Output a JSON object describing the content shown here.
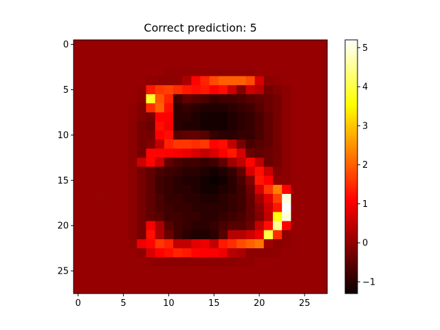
{
  "chart_data": {
    "type": "heatmap",
    "title": "Correct prediction: 5",
    "xlabel": "",
    "ylabel": "",
    "colormap": "hot",
    "xlim": [
      -0.5,
      27.5
    ],
    "ylim": [
      27.5,
      -0.5
    ],
    "x_ticks": [
      0,
      5,
      10,
      15,
      20,
      25
    ],
    "y_ticks": [
      0,
      5,
      10,
      15,
      20,
      25
    ],
    "colorbar": {
      "vmin": -1.3,
      "vmax": 5.2,
      "ticks": [
        -1,
        0,
        1,
        2,
        3,
        4,
        5
      ]
    },
    "grid": false,
    "shape": [
      28,
      28
    ],
    "matrix": [
      [
        0,
        0,
        0,
        0,
        0,
        0,
        0,
        0,
        0,
        0,
        0,
        0,
        0,
        0,
        0,
        0,
        0,
        0,
        0,
        0,
        0,
        0,
        0,
        0,
        0,
        0,
        0,
        0
      ],
      [
        0,
        0,
        0,
        0,
        0,
        0,
        0,
        0,
        0,
        0,
        0,
        0,
        0,
        0,
        0,
        0,
        0,
        0,
        0,
        0,
        0,
        0,
        0,
        0,
        0,
        0,
        0,
        0
      ],
      [
        0,
        0,
        0,
        0,
        0,
        0,
        0,
        0,
        0,
        0,
        0,
        0,
        0,
        0,
        0,
        0,
        0,
        0,
        0,
        0,
        0,
        0,
        0,
        0,
        0,
        0,
        0,
        0
      ],
      [
        0,
        0,
        0,
        0,
        0,
        0,
        0,
        0,
        0,
        0,
        -0.05,
        -0.05,
        -0.05,
        -0.05,
        -0.05,
        -0.05,
        -0.05,
        -0.05,
        -0.05,
        -0.05,
        0,
        0,
        0,
        0,
        0,
        0,
        0,
        0
      ],
      [
        0,
        0,
        0,
        0,
        0,
        0,
        0,
        0,
        -0.05,
        -0.1,
        -0.1,
        -0.05,
        0.2,
        1.1,
        1.4,
        1.8,
        2.0,
        2.0,
        2.0,
        1.8,
        0.6,
        -0.1,
        -0.05,
        0,
        0,
        0,
        0,
        0
      ],
      [
        0,
        0,
        0,
        0,
        0,
        0,
        0,
        -0.05,
        1.3,
        1.6,
        1.7,
        1.5,
        1.3,
        1.2,
        1.3,
        1.0,
        1.2,
        0.5,
        -0.2,
        0.5,
        0.3,
        -0.3,
        -0.2,
        -0.1,
        0,
        0,
        0,
        0
      ],
      [
        0,
        0,
        0,
        0,
        0,
        0,
        0,
        -0.1,
        3.8,
        1.9,
        1.4,
        -0.8,
        -0.5,
        -0.6,
        -0.7,
        -0.9,
        -0.8,
        -0.8,
        -0.7,
        -0.6,
        -0.5,
        -0.4,
        -0.3,
        -0.1,
        0,
        0,
        0,
        0
      ],
      [
        0,
        0,
        0,
        0,
        0,
        0,
        -0.05,
        -0.2,
        1.5,
        2.0,
        1.2,
        -1.0,
        -0.9,
        -1.0,
        -1.1,
        -1.1,
        -1.1,
        -1.0,
        -0.9,
        -0.8,
        -0.6,
        -0.4,
        -0.3,
        -0.1,
        0,
        0,
        0,
        0
      ],
      [
        0,
        0,
        0,
        0,
        0,
        0,
        -0.05,
        -0.2,
        -0.3,
        1.0,
        1.0,
        -1.0,
        -1.0,
        -1.1,
        -1.2,
        -1.2,
        -1.2,
        -1.1,
        -1.0,
        -0.9,
        -0.7,
        -0.5,
        -0.3,
        -0.1,
        0,
        0,
        0,
        0
      ],
      [
        0,
        0,
        0,
        0,
        0,
        0,
        -0.1,
        -0.3,
        -0.4,
        1.2,
        0.9,
        -1.0,
        -1.1,
        -1.1,
        -1.2,
        -1.2,
        -1.2,
        -1.1,
        -1.0,
        -0.9,
        -0.7,
        -0.5,
        -0.3,
        -0.1,
        0,
        0,
        0,
        0
      ],
      [
        0,
        0,
        0,
        0,
        0,
        0,
        -0.1,
        -0.3,
        -0.3,
        1.0,
        1.2,
        -0.6,
        -0.5,
        -0.5,
        -0.6,
        -0.9,
        -1.0,
        -1.0,
        -0.9,
        -0.9,
        -0.7,
        -0.5,
        -0.3,
        -0.1,
        0,
        0,
        0,
        0
      ],
      [
        0,
        0,
        0,
        0,
        0,
        0,
        -0.1,
        -0.3,
        -0.2,
        0.4,
        1.4,
        1.6,
        1.6,
        1.5,
        1.6,
        1.1,
        1.2,
        0.4,
        -0.3,
        -0.7,
        -0.6,
        -0.5,
        -0.3,
        -0.1,
        0,
        0,
        0,
        0
      ],
      [
        0,
        0,
        0,
        0,
        0,
        0,
        -0.1,
        -0.3,
        1.1,
        1.1,
        1.0,
        0.9,
        0.8,
        0.6,
        0.4,
        0.6,
        1.0,
        1.3,
        0.6,
        -0.4,
        -0.5,
        -0.4,
        -0.3,
        -0.1,
        0,
        0,
        0,
        0
      ],
      [
        0,
        0,
        0,
        0,
        0,
        0,
        -0.1,
        0.5,
        1.1,
        0.5,
        -0.5,
        -0.7,
        -0.8,
        -0.8,
        -0.9,
        -0.8,
        -0.5,
        0.1,
        0.4,
        1.1,
        0.4,
        -0.4,
        -0.3,
        -0.1,
        0,
        0,
        0,
        0
      ],
      [
        0,
        0,
        0,
        0,
        0,
        0,
        -0.1,
        -0.3,
        -0.5,
        -0.7,
        -0.8,
        -0.9,
        -1.0,
        -1.0,
        -1.1,
        -1.2,
        -1.1,
        -0.9,
        -0.5,
        0.6,
        1.2,
        0.5,
        -0.2,
        -0.1,
        0,
        0,
        0,
        0
      ],
      [
        0,
        0,
        0,
        0,
        0,
        0,
        -0.1,
        -0.3,
        -0.5,
        -0.8,
        -0.9,
        -1.0,
        -1.1,
        -1.1,
        -1.2,
        -1.3,
        -1.2,
        -1.0,
        -0.7,
        -0.2,
        1.3,
        1.0,
        -0.1,
        -0.1,
        0,
        0,
        0,
        0
      ],
      [
        0,
        0,
        0,
        0,
        0,
        0,
        -0.1,
        -0.3,
        -0.5,
        -0.8,
        -0.9,
        -1.0,
        -1.0,
        -1.1,
        -1.2,
        -1.2,
        -1.1,
        -1.0,
        -0.8,
        -0.4,
        0.6,
        1.6,
        2.3,
        1.0,
        0,
        0,
        0,
        0
      ],
      [
        0,
        0,
        0,
        0,
        0,
        0,
        -0.1,
        -0.3,
        -0.5,
        -0.7,
        -0.9,
        -0.9,
        -1.0,
        -1.0,
        -1.1,
        -1.1,
        -1.0,
        -0.9,
        -0.8,
        -0.5,
        0.1,
        0.7,
        1.7,
        5.0,
        0,
        0,
        0,
        0
      ],
      [
        0,
        0,
        0,
        0,
        0,
        0,
        -0.1,
        -0.3,
        -0.5,
        -0.7,
        -0.8,
        -0.9,
        -0.9,
        -1.0,
        -1.0,
        -1.0,
        -1.0,
        -0.9,
        -0.8,
        -0.5,
        -0.1,
        0.5,
        1.3,
        5.2,
        0,
        0,
        0,
        0
      ],
      [
        0,
        0,
        0,
        0,
        0,
        0,
        -0.1,
        -0.3,
        -0.5,
        -0.6,
        -0.8,
        -0.8,
        -0.9,
        -0.9,
        -1.0,
        -1.0,
        -0.9,
        -0.8,
        -0.7,
        -0.5,
        -0.2,
        0.4,
        3.6,
        5.0,
        0,
        0,
        0,
        0
      ],
      [
        0,
        0,
        0,
        0,
        0,
        0,
        -0.1,
        -0.3,
        0.9,
        0.2,
        -0.6,
        -0.8,
        -0.9,
        -1.0,
        -1.0,
        -0.9,
        -0.7,
        -0.6,
        -0.6,
        -0.4,
        0.4,
        1.2,
        4.5,
        1.0,
        0,
        0,
        0,
        0
      ],
      [
        0,
        0,
        0,
        0,
        0,
        0,
        -0.1,
        -0.3,
        1.2,
        0.2,
        -0.4,
        -0.8,
        -1.0,
        -1.1,
        -1.1,
        -1.0,
        -0.6,
        0.3,
        0.3,
        0.5,
        0.8,
        4.0,
        1.5,
        -0.1,
        0,
        0,
        0,
        0
      ],
      [
        0,
        0,
        0,
        0,
        0,
        0,
        -0.05,
        0.8,
        1.1,
        1.6,
        1.4,
        0.4,
        0.4,
        0.7,
        0.8,
        0.4,
        1.3,
        1.5,
        1.8,
        2.0,
        2.2,
        0.1,
        -0.1,
        -0.05,
        0,
        0,
        0,
        0
      ],
      [
        0,
        0,
        0,
        0,
        0,
        0,
        0,
        -0.1,
        0.6,
        1.0,
        1.2,
        1.4,
        1.3,
        1.1,
        1.0,
        1.0,
        0.8,
        0.3,
        0.2,
        -0.1,
        -0.1,
        -0.1,
        -0.05,
        0,
        0,
        0,
        0,
        0
      ],
      [
        0,
        0,
        0,
        0,
        0,
        0,
        0,
        0,
        -0.05,
        -0.1,
        -0.1,
        -0.1,
        -0.1,
        -0.1,
        -0.1,
        -0.1,
        -0.1,
        -0.1,
        -0.05,
        -0.05,
        0,
        0,
        0,
        0,
        0,
        0,
        0,
        0
      ],
      [
        0,
        0,
        0,
        0,
        0,
        0,
        0,
        0,
        0,
        0,
        0,
        0,
        0,
        0,
        0,
        0,
        0,
        0,
        0,
        0,
        0,
        0,
        0,
        0,
        0,
        0,
        0,
        0
      ],
      [
        0,
        0,
        0,
        0,
        0,
        0,
        0,
        0,
        0,
        0,
        0,
        0,
        0,
        0,
        0,
        0,
        0,
        0,
        0,
        0,
        0,
        0,
        0,
        0,
        0,
        0,
        0,
        0
      ],
      [
        0,
        0,
        0,
        0,
        0,
        0,
        0,
        0,
        0,
        0,
        0,
        0,
        0,
        0,
        0,
        0,
        0,
        0,
        0,
        0,
        0,
        0,
        0,
        0,
        0,
        0,
        0,
        0
      ]
    ]
  }
}
